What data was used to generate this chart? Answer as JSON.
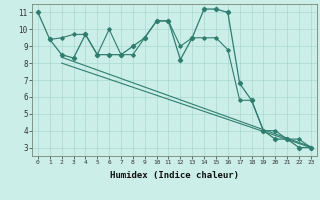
{
  "line1_x": [
    0,
    1,
    2,
    3,
    4,
    5,
    6,
    7,
    8,
    9,
    10,
    11,
    12,
    13,
    14,
    15,
    16,
    17,
    18,
    19,
    20,
    21,
    22,
    23
  ],
  "line1_y": [
    11.0,
    9.4,
    8.5,
    8.3,
    9.7,
    8.5,
    8.5,
    8.5,
    9.0,
    9.5,
    10.5,
    10.5,
    8.2,
    9.5,
    11.2,
    11.2,
    11.0,
    6.8,
    5.8,
    4.0,
    3.5,
    3.5,
    3.0,
    3.0
  ],
  "line2_x": [
    1,
    2,
    3,
    4,
    5,
    6,
    7,
    8,
    9,
    10,
    11,
    12,
    13,
    14,
    15,
    16,
    17,
    18,
    19,
    20,
    21,
    22,
    23
  ],
  "line2_y": [
    9.4,
    9.5,
    9.7,
    9.7,
    8.5,
    10.0,
    8.5,
    8.5,
    9.5,
    10.5,
    10.5,
    9.0,
    9.5,
    9.5,
    9.5,
    8.8,
    5.8,
    5.8,
    4.0,
    4.0,
    3.5,
    3.5,
    3.0
  ],
  "line3_x": [
    2,
    23
  ],
  "line3_y": [
    8.35,
    3.05
  ],
  "line4_x": [
    2,
    23
  ],
  "line4_y": [
    8.0,
    3.0
  ],
  "line_color": "#2e7d6e",
  "bg_color": "#cceee8",
  "grid_color": "#aad8d2",
  "xlabel": "Humidex (Indice chaleur)",
  "ylim": [
    2.5,
    11.5
  ],
  "xlim": [
    -0.5,
    23.5
  ],
  "yticks": [
    3,
    4,
    5,
    6,
    7,
    8,
    9,
    10,
    11
  ],
  "xticks": [
    0,
    1,
    2,
    3,
    4,
    5,
    6,
    7,
    8,
    9,
    10,
    11,
    12,
    13,
    14,
    15,
    16,
    17,
    18,
    19,
    20,
    21,
    22,
    23
  ],
  "xtick_labels": [
    "0",
    "1",
    "2",
    "3",
    "4",
    "5",
    "6",
    "7",
    "8",
    "9",
    "10",
    "11",
    "12",
    "13",
    "14",
    "15",
    "16",
    "17",
    "18",
    "19",
    "20",
    "21",
    "22",
    "23"
  ]
}
